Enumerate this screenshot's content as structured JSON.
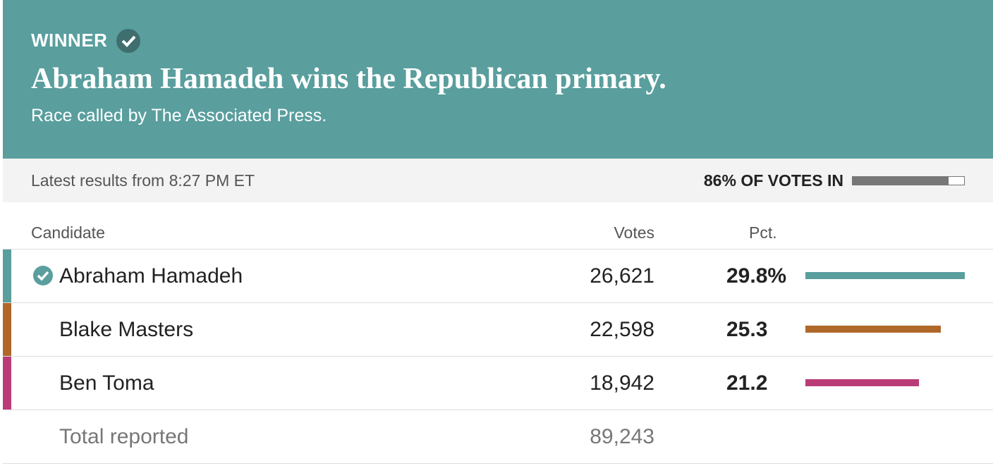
{
  "header": {
    "label": "WINNER",
    "title": "Abraham Hamadeh wins the Republican primary.",
    "subtitle": "Race called by The Associated Press."
  },
  "status": {
    "updated": "Latest results from 8:27 PM ET",
    "reporting": {
      "value": 86,
      "label": "86% OF VOTES IN"
    }
  },
  "table": {
    "columns": [
      "Candidate",
      "Votes",
      "Pct."
    ],
    "rows": [
      {
        "name": "Abraham Hamadeh",
        "votes": "26,621",
        "pct": 29.8,
        "pct_label": "29.8%",
        "color": "#5a9e9e",
        "winner": true
      },
      {
        "name": "Blake Masters",
        "votes": "22,598",
        "pct": 25.3,
        "color": "#b0672a"
      },
      {
        "name": "Ben Toma",
        "votes": "18,942",
        "pct": 21.2,
        "color": "#b93c78"
      }
    ],
    "total": {
      "name": "Total reported",
      "votes": "89,243"
    }
  }
}
